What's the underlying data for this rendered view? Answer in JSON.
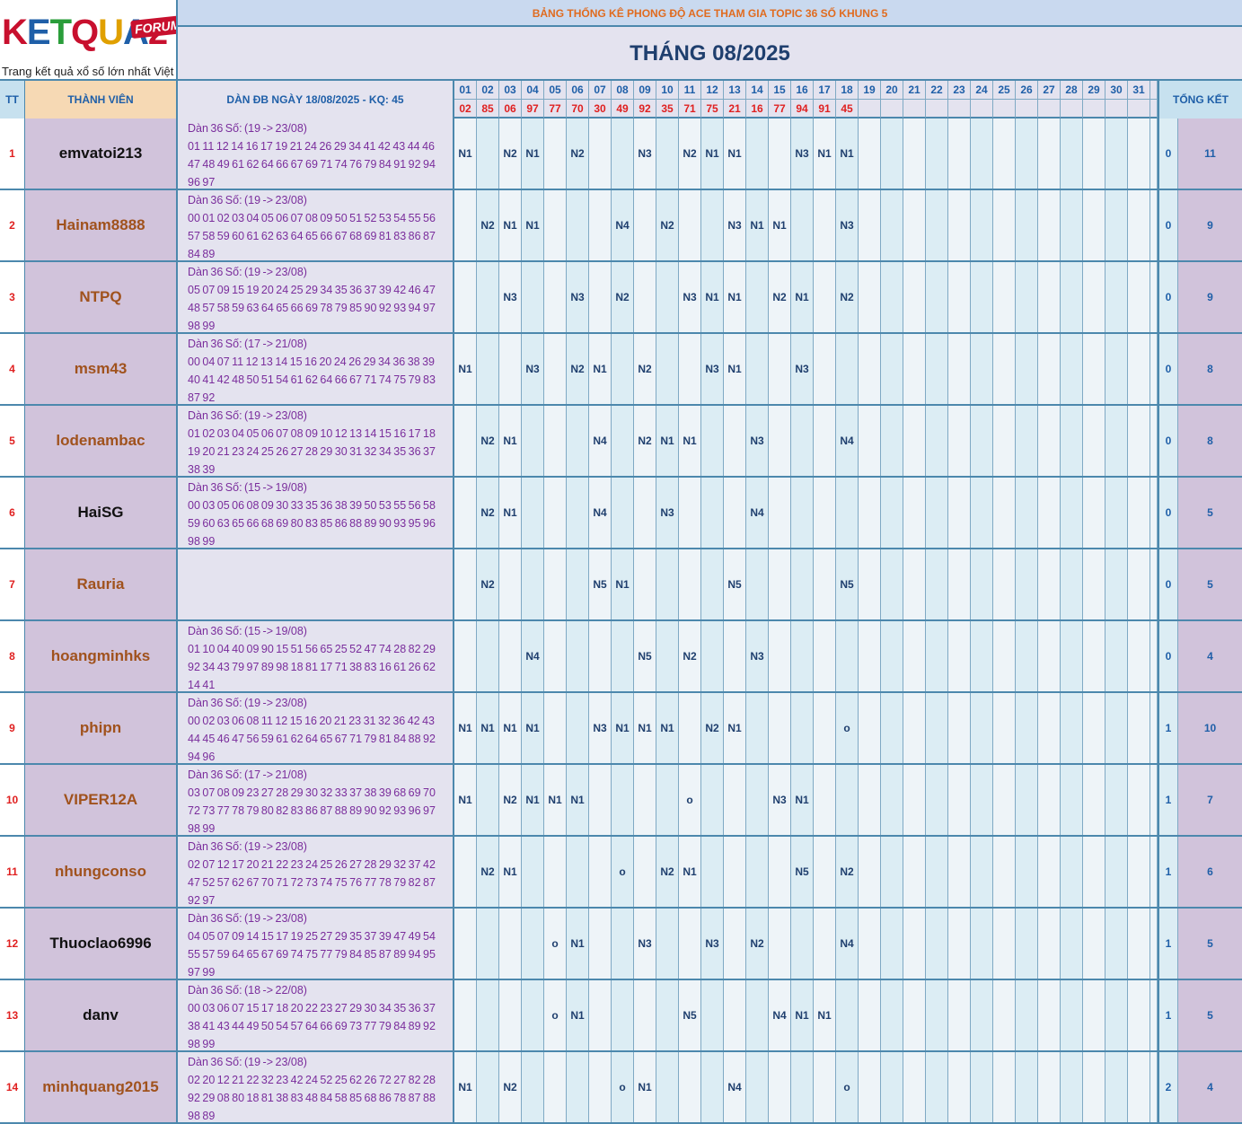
{
  "logo": {
    "brand": "KETQUA2",
    "badge": "FORUM",
    "tagline": "Trang kết quả xổ số lớn nhất Việt Nam"
  },
  "header": {
    "title": "BẢNG THỐNG KÊ PHONG ĐỘ ACE THAM GIA TOPIC 36 SỐ KHUNG 5",
    "month": "THÁNG 08/2025"
  },
  "columns": {
    "tt": "TT",
    "member": "THÀNH VIÊN",
    "dan": "DÀN ĐB NGÀY 18/08/2025 - KQ: 45",
    "summary": "TỔNG KẾT"
  },
  "days": [
    "01",
    "02",
    "03",
    "04",
    "05",
    "06",
    "07",
    "08",
    "09",
    "10",
    "11",
    "12",
    "13",
    "14",
    "15",
    "16",
    "17",
    "18",
    "19",
    "20",
    "21",
    "22",
    "23",
    "24",
    "25",
    "26",
    "27",
    "28",
    "29",
    "30",
    "31"
  ],
  "results": [
    "02",
    "85",
    "06",
    "97",
    "77",
    "70",
    "30",
    "49",
    "92",
    "35",
    "71",
    "75",
    "21",
    "16",
    "77",
    "94",
    "91",
    "45",
    "",
    "",
    "",
    "",
    "",
    "",
    "",
    "",
    "",
    "",
    "",
    "",
    ""
  ],
  "colors": {
    "border": "#4c88ad",
    "result_red": "#e02020",
    "name_brown": "#a0521d",
    "name_black": "#111111",
    "dan_purple": "#7a2d9c"
  },
  "rows": [
    {
      "tt": "1",
      "name": "emvatoi213",
      "name_color": "black",
      "dan_head": "Dàn 36 Số: (19 -> 23/08)",
      "dan_nums": "01 11 12 14 16 17 19 21 24 26 29 34 41 42 43 44 46 47 48 49 61 62 64 66 67 69 71 74 76 79 84 91 92 94 96 97",
      "marks": [
        "N1",
        "",
        "N2",
        "N1",
        "",
        "N2",
        "",
        "",
        "N3",
        "",
        "N2",
        "N1",
        "N1",
        "",
        "",
        "N3",
        "N1",
        "N1",
        "",
        "",
        "",
        "",
        "",
        "",
        "",
        "",
        "",
        "",
        "",
        "",
        ""
      ],
      "k": "0",
      "total": "11"
    },
    {
      "tt": "2",
      "name": "Hainam8888",
      "name_color": "brown",
      "dan_head": "Dàn 36 Số: (19 -> 23/08)",
      "dan_nums": "00 01 02 03 04 05 06 07 08 09 50 51 52 53 54 55 56 57 58 59 60 61 62 63 64 65 66 67 68 69 81 83 86 87 84 89",
      "marks": [
        "",
        "N2",
        "N1",
        "N1",
        "",
        "",
        "",
        "N4",
        "",
        "N2",
        "",
        "",
        "N3",
        "N1",
        "N1",
        "",
        "",
        "N3",
        "",
        "",
        "",
        "",
        "",
        "",
        "",
        "",
        "",
        "",
        "",
        "",
        ""
      ],
      "k": "0",
      "total": "9"
    },
    {
      "tt": "3",
      "name": "NTPQ",
      "name_color": "brown",
      "dan_head": "Dàn 36 Số: (19 -> 23/08)",
      "dan_nums": "05 07 09 15 19 20 24 25 29 34 35 36 37 39 42 46 47 48 57 58 59 63 64 65 66 69 78 79 85 90 92 93 94 97 98 99",
      "marks": [
        "",
        "",
        "N3",
        "",
        "",
        "N3",
        "",
        "N2",
        "",
        "",
        "N3",
        "N1",
        "N1",
        "",
        "N2",
        "N1",
        "",
        "N2",
        "",
        "",
        "",
        "",
        "",
        "",
        "",
        "",
        "",
        "",
        "",
        "",
        ""
      ],
      "k": "0",
      "total": "9"
    },
    {
      "tt": "4",
      "name": "msm43",
      "name_color": "brown",
      "dan_head": "Dàn 36 Số: (17 -> 21/08)",
      "dan_nums": "00 04 07 11 12 13 14 15 16 20 24 26 29 34 36 38 39 40 41 42 48 50 51 54 61 62 64 66 67 71 74 75 79 83 87 92",
      "marks": [
        "N1",
        "",
        "",
        "N3",
        "",
        "N2",
        "N1",
        "",
        "N2",
        "",
        "",
        "N3",
        "N1",
        "",
        "",
        "N3",
        "",
        "",
        "",
        "",
        "",
        "",
        "",
        "",
        "",
        "",
        "",
        "",
        "",
        "",
        ""
      ],
      "k": "0",
      "total": "8"
    },
    {
      "tt": "5",
      "name": "lodenambac",
      "name_color": "brown",
      "dan_head": "Dàn 36 Số: (19 -> 23/08)",
      "dan_nums": "01 02 03 04 05 06 07 08 09 10 12 13 14 15 16 17 18 19 20 21 23 24 25 26 27 28 29 30 31 32 34 35 36 37 38 39",
      "marks": [
        "",
        "N2",
        "N1",
        "",
        "",
        "",
        "N4",
        "",
        "N2",
        "N1",
        "N1",
        "",
        "",
        "N3",
        "",
        "",
        "",
        "N4",
        "",
        "",
        "",
        "",
        "",
        "",
        "",
        "",
        "",
        "",
        "",
        "",
        ""
      ],
      "k": "0",
      "total": "8"
    },
    {
      "tt": "6",
      "name": "HaiSG",
      "name_color": "black",
      "dan_head": "Dàn 36 Số: (15 -> 19/08)",
      "dan_nums": "00 03 05 06 08 09 30 33 35 36 38 39 50 53 55 56 58 59 60 63 65 66 68 69 80 83 85 86 88 89 90 93 95 96 98 99",
      "marks": [
        "",
        "N2",
        "N1",
        "",
        "",
        "",
        "N4",
        "",
        "",
        "N3",
        "",
        "",
        "",
        "N4",
        "",
        "",
        "",
        "",
        "",
        "",
        "",
        "",
        "",
        "",
        "",
        "",
        "",
        "",
        "",
        "",
        ""
      ],
      "k": "0",
      "total": "5"
    },
    {
      "tt": "7",
      "name": "Rauria",
      "name_color": "brown",
      "dan_head": "",
      "dan_nums": "",
      "marks": [
        "",
        "N2",
        "",
        "",
        "",
        "",
        "N5",
        "N1",
        "",
        "",
        "",
        "",
        "N5",
        "",
        "",
        "",
        "",
        "N5",
        "",
        "",
        "",
        "",
        "",
        "",
        "",
        "",
        "",
        "",
        "",
        "",
        ""
      ],
      "k": "0",
      "total": "5"
    },
    {
      "tt": "8",
      "name": "hoangminhks",
      "name_color": "brown",
      "dan_head": "Dàn 36 Số: (15 -> 19/08)",
      "dan_nums": "01 10 04 40 09 90 15 51 56 65 25 52 47 74 28 82 29 92 34 43 79 97 89 98 18 81 17 71 38 83 16 61 26 62 14 41",
      "marks": [
        "",
        "",
        "",
        "N4",
        "",
        "",
        "",
        "",
        "N5",
        "",
        "N2",
        "",
        "",
        "N3",
        "",
        "",
        "",
        "",
        "",
        "",
        "",
        "",
        "",
        "",
        "",
        "",
        "",
        "",
        "",
        "",
        ""
      ],
      "k": "0",
      "total": "4"
    },
    {
      "tt": "9",
      "name": "phipn",
      "name_color": "brown",
      "dan_head": "Dàn 36 Số: (19 -> 23/08)",
      "dan_nums": "00 02 03 06 08 11 12 15 16 20 21 23 31 32 36 42 43 44 45 46 47 56 59 61 62 64 65 67 71 79 81 84 88 92 94 96",
      "marks": [
        "N1",
        "N1",
        "N1",
        "N1",
        "",
        "",
        "N3",
        "N1",
        "N1",
        "N1",
        "",
        "N2",
        "N1",
        "",
        "",
        "",
        "",
        "o",
        "",
        "",
        "",
        "",
        "",
        "",
        "",
        "",
        "",
        "",
        "",
        "",
        ""
      ],
      "k": "1",
      "total": "10"
    },
    {
      "tt": "10",
      "name": "VIPER12A",
      "name_color": "brown",
      "dan_head": "Dàn 36 Số: (17 -> 21/08)",
      "dan_nums": "03 07 08 09 23 27 28 29 30 32 33 37 38 39 68 69 70 72 73 77 78 79 80 82 83 86 87 88 89 90 92 93 96 97 98 99",
      "marks": [
        "N1",
        "",
        "N2",
        "N1",
        "N1",
        "N1",
        "",
        "",
        "",
        "",
        "o",
        "",
        "",
        "",
        "N3",
        "N1",
        "",
        "",
        "",
        "",
        "",
        "",
        "",
        "",
        "",
        "",
        "",
        "",
        "",
        "",
        ""
      ],
      "k": "1",
      "total": "7"
    },
    {
      "tt": "11",
      "name": "nhungconso",
      "name_color": "brown",
      "dan_head": "Dàn 36 Số: (19 -> 23/08)",
      "dan_nums": "02 07 12 17 20 21 22 23 24 25 26 27 28 29 32 37 42 47 52 57 62 67 70 71 72 73 74 75 76 77 78 79 82 87 92 97",
      "marks": [
        "",
        "N2",
        "N1",
        "",
        "",
        "",
        "",
        "o",
        "",
        "N2",
        "N1",
        "",
        "",
        "",
        "",
        "N5",
        "",
        "N2",
        "",
        "",
        "",
        "",
        "",
        "",
        "",
        "",
        "",
        "",
        "",
        "",
        ""
      ],
      "k": "1",
      "total": "6"
    },
    {
      "tt": "12",
      "name": "Thuoclao6996",
      "name_color": "black",
      "dan_head": "Dàn 36 Số: (19 -> 23/08)",
      "dan_nums": "04 05 07 09 14 15 17 19 25 27 29 35 37 39 47 49 54 55 57 59 64 65 67 69 74 75 77 79 84 85 87 89 94 95 97 99",
      "marks": [
        "",
        "",
        "",
        "",
        "o",
        "N1",
        "",
        "",
        "N3",
        "",
        "",
        "N3",
        "",
        "N2",
        "",
        "",
        "",
        "N4",
        "",
        "",
        "",
        "",
        "",
        "",
        "",
        "",
        "",
        "",
        "",
        "",
        ""
      ],
      "k": "1",
      "total": "5"
    },
    {
      "tt": "13",
      "name": "danv",
      "name_color": "black",
      "dan_head": "Dàn 36 Số: (18 -> 22/08)",
      "dan_nums": "00 03 06 07 15 17 18 20 22 23 27 29 30 34 35 36 37 38 41 43 44 49 50 54 57 64 66 69 73 77 79 84 89 92 98 99",
      "marks": [
        "",
        "",
        "",
        "",
        "o",
        "N1",
        "",
        "",
        "",
        "",
        "N5",
        "",
        "",
        "",
        "N4",
        "N1",
        "N1",
        "",
        "",
        "",
        "",
        "",
        "",
        "",
        "",
        "",
        "",
        "",
        "",
        "",
        ""
      ],
      "k": "1",
      "total": "5"
    },
    {
      "tt": "14",
      "name": "minhquang2015",
      "name_color": "brown",
      "dan_head": "Dàn 36 Số: (19 -> 23/08)",
      "dan_nums": "02 20 12 21 22 32 23 42 24 52 25 62 26 72 27 82 28 92 29 08 80 18 81 38 83 48 84 58 85 68 86 78 87 88 98 89",
      "marks": [
        "N1",
        "",
        "N2",
        "",
        "",
        "",
        "",
        "o",
        "N1",
        "",
        "",
        "",
        "N4",
        "",
        "",
        "",
        "",
        "o",
        "",
        "",
        "",
        "",
        "",
        "",
        "",
        "",
        "",
        "",
        "",
        "",
        ""
      ],
      "k": "2",
      "total": "4"
    }
  ]
}
